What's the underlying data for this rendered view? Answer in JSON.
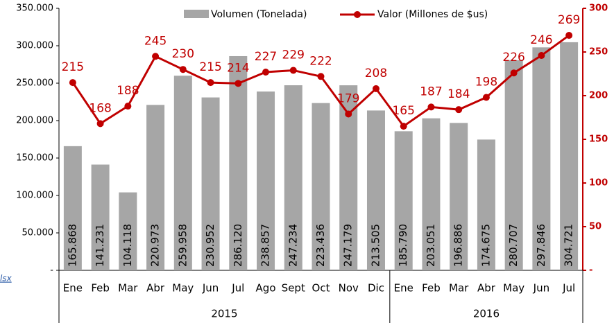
{
  "chart_data": {
    "type": "bar_line",
    "groups": [
      {
        "label": "2015",
        "categories": [
          "Ene",
          "Feb",
          "Mar",
          "Abr",
          "May",
          "Jun",
          "Jul",
          "Ago",
          "Sept",
          "Oct",
          "Nov",
          "Dic"
        ]
      },
      {
        "label": "2016",
        "categories": [
          "Ene",
          "Feb",
          "Mar",
          "Abr",
          "May",
          "Jun",
          "Jul"
        ]
      }
    ],
    "series": [
      {
        "name": "Volumen (Tonelada)",
        "type": "bar",
        "color": "#a6a6a6",
        "values": [
          165868,
          141231,
          104118,
          220973,
          259958,
          230952,
          286120,
          238857,
          247234,
          223436,
          247179,
          213505,
          185790,
          203051,
          196886,
          174675,
          280707,
          297846,
          304721
        ],
        "value_labels": [
          "165.868",
          "141.231",
          "104.118",
          "220.973",
          "259.958",
          "230.952",
          "286.120",
          "238.857",
          "247.234",
          "223.436",
          "247.179",
          "213.505",
          "185.790",
          "203.051",
          "196.886",
          "174.675",
          "280.707",
          "297.846",
          "304.721"
        ]
      },
      {
        "name": "Valor (Millones de $us)",
        "type": "line",
        "axis": "y2",
        "color": "#c00000",
        "values": [
          215,
          168,
          188,
          245,
          230,
          215,
          214,
          227,
          229,
          222,
          179,
          208,
          165,
          187,
          184,
          198,
          226,
          246,
          269
        ]
      }
    ],
    "ylim": [
      0,
      350000
    ],
    "yticks": [
      {
        "value": 0,
        "label": "-"
      },
      {
        "value": 50000,
        "label": "50.000"
      },
      {
        "value": 100000,
        "label": "100.000"
      },
      {
        "value": 150000,
        "label": "150.000"
      },
      {
        "value": 200000,
        "label": "200.000"
      },
      {
        "value": 250000,
        "label": "250.000"
      },
      {
        "value": 300000,
        "label": "300.000"
      },
      {
        "value": 350000,
        "label": "350.000"
      }
    ],
    "y2lim": [
      0,
      300
    ],
    "y2ticks": [
      {
        "value": 0,
        "label": "-"
      },
      50,
      100,
      150,
      200,
      250,
      300
    ],
    "y2color": "#c00000",
    "source_link": "lsx"
  }
}
